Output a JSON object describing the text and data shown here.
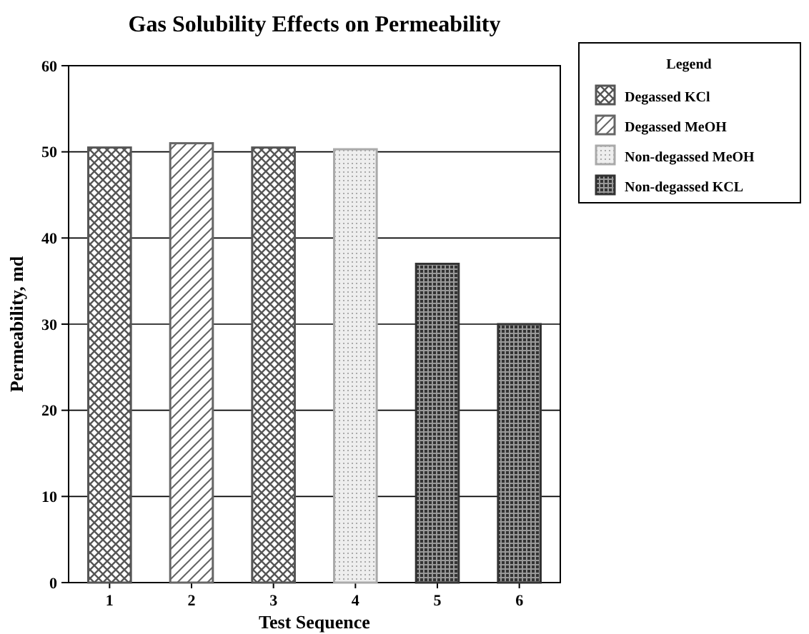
{
  "chart_data": {
    "type": "bar",
    "title": "Gas Solubility Effects on Permeability",
    "xlabel": "Test Sequence",
    "ylabel": "Permeability, md",
    "legend_title": "Legend",
    "categories": [
      "1",
      "2",
      "3",
      "4",
      "5",
      "6"
    ],
    "series": [
      {
        "name": "Degassed KCl",
        "color": "#555555",
        "values": [
          50.5,
          null,
          50.5,
          null,
          null,
          null
        ]
      },
      {
        "name": "Degassed MeOH",
        "color": "#666666",
        "values": [
          null,
          51,
          null,
          null,
          null,
          null
        ]
      },
      {
        "name": "Non-degassed MeOH",
        "color": "#aaaaaa",
        "values": [
          null,
          null,
          null,
          50.3,
          null,
          null
        ]
      },
      {
        "name": "Non-degassed KCL",
        "color": "#333333",
        "values": [
          null,
          null,
          null,
          null,
          37,
          30
        ]
      }
    ],
    "ylim": [
      0,
      60
    ],
    "yticks": [
      0,
      10,
      20,
      30,
      40,
      50,
      60
    ],
    "grid": "y",
    "legend": "top right"
  }
}
